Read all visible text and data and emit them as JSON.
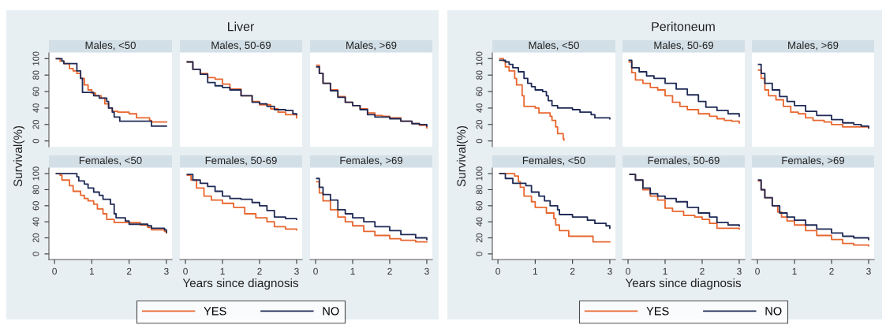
{
  "chart_data": [
    {
      "type": "step",
      "title": "Males, <50",
      "annotations": [
        "Liver"
      ],
      "ylabel": "Survival(%)",
      "xlim": [
        -0.15,
        3.15
      ],
      "ylim": [
        -7,
        107
      ],
      "xticks": [
        0,
        1,
        2,
        3
      ],
      "yticks": [
        0,
        20,
        40,
        60,
        80,
        100
      ],
      "tick_labels": "y",
      "grid": false,
      "series": [
        {
          "color": "#e8662e",
          "x": [
            0.05,
            0.15,
            0.25,
            0.4,
            0.5,
            0.6,
            0.7,
            0.8,
            0.9,
            1.0,
            1.1,
            1.25,
            1.35,
            1.45,
            1.55,
            1.7,
            2.0,
            2.2,
            2.55,
            2.6,
            3.0
          ],
          "values": [
            100,
            97,
            94,
            88,
            85,
            82,
            76,
            68,
            62,
            58,
            55,
            52,
            45,
            40,
            36,
            35,
            33,
            28,
            25,
            23,
            23
          ]
        },
        {
          "color": "#1f2a55",
          "x": [
            0.05,
            0.2,
            0.25,
            0.6,
            0.7,
            0.75,
            1.05,
            1.2,
            1.4,
            1.45,
            1.55,
            1.6,
            1.75,
            2.6,
            3.0
          ],
          "values": [
            100,
            97,
            94,
            85,
            76,
            59,
            55,
            52,
            48,
            40,
            35,
            29,
            24,
            18,
            18
          ]
        }
      ]
    },
    {
      "type": "step",
      "title": "Males, 50-69",
      "xlim": [
        -0.15,
        3.15
      ],
      "ylim": [
        -7,
        107
      ],
      "xticks": [
        0,
        1,
        2,
        3
      ],
      "yticks": [
        0,
        20,
        40,
        60,
        80,
        100
      ],
      "tick_labels": false,
      "grid": false,
      "series": [
        {
          "color": "#e8662e",
          "x": [
            0.05,
            0.2,
            0.4,
            0.6,
            0.8,
            1.0,
            1.2,
            1.5,
            1.8,
            2.0,
            2.3,
            2.5,
            2.7,
            3.0
          ],
          "values": [
            96,
            87,
            82,
            77,
            75,
            69,
            63,
            55,
            48,
            44,
            39,
            35,
            32,
            28
          ]
        },
        {
          "color": "#1f2a55",
          "x": [
            0.05,
            0.2,
            0.4,
            0.6,
            0.8,
            1.0,
            1.2,
            1.5,
            1.8,
            2.0,
            2.2,
            2.4,
            2.7,
            2.9,
            3.0
          ],
          "values": [
            96,
            87,
            81,
            71,
            67,
            65,
            62,
            55,
            47,
            45,
            42,
            38,
            37,
            33,
            32
          ]
        }
      ]
    },
    {
      "type": "step",
      "title": "Males, >69",
      "xlim": [
        -0.15,
        3.15
      ],
      "ylim": [
        -7,
        107
      ],
      "xticks": [
        0,
        1,
        2,
        3
      ],
      "yticks": [
        0,
        20,
        40,
        60,
        80,
        100
      ],
      "tick_labels": false,
      "grid": false,
      "series": [
        {
          "color": "#e8662e",
          "x": [
            0.03,
            0.1,
            0.2,
            0.4,
            0.6,
            0.8,
            1.0,
            1.2,
            1.4,
            1.6,
            1.8,
            2.0,
            2.3,
            2.6,
            2.8,
            3.0
          ],
          "values": [
            92,
            82,
            70,
            62,
            54,
            47,
            43,
            39,
            34,
            31,
            30,
            28,
            24,
            21,
            19,
            16
          ]
        },
        {
          "color": "#1f2a55",
          "x": [
            0.03,
            0.1,
            0.2,
            0.4,
            0.6,
            0.8,
            1.0,
            1.2,
            1.4,
            1.6,
            1.8,
            2.0,
            2.3,
            2.6,
            2.8,
            3.0
          ],
          "values": [
            90,
            82,
            70,
            61,
            53,
            47,
            43,
            38,
            32,
            29,
            29,
            27,
            24,
            21,
            20,
            18
          ]
        }
      ]
    },
    {
      "type": "step",
      "title": "Females, <50",
      "xlim": [
        -0.15,
        3.15
      ],
      "ylim": [
        -7,
        107
      ],
      "xticks": [
        0,
        1,
        2,
        3
      ],
      "yticks": [
        0,
        20,
        40,
        60,
        80,
        100
      ],
      "grid": false,
      "series": [
        {
          "color": "#e8662e",
          "x": [
            0.05,
            0.15,
            0.2,
            0.4,
            0.5,
            0.7,
            0.8,
            0.9,
            1.05,
            1.15,
            1.3,
            1.4,
            1.6,
            2.3,
            2.5,
            2.6,
            2.95,
            3.0
          ],
          "values": [
            100,
            98,
            92,
            85,
            78,
            73,
            69,
            66,
            62,
            56,
            50,
            43,
            39,
            36,
            33,
            30,
            28,
            26
          ]
        },
        {
          "color": "#1f2a55",
          "x": [
            0.05,
            0.6,
            0.65,
            0.8,
            0.9,
            1.05,
            1.2,
            1.3,
            1.5,
            1.6,
            1.65,
            1.9,
            2.0,
            2.5,
            2.6,
            2.95,
            3.0
          ],
          "values": [
            100,
            96,
            91,
            87,
            82,
            77,
            73,
            68,
            62,
            50,
            45,
            41,
            37,
            35,
            32,
            30,
            27
          ]
        }
      ]
    },
    {
      "type": "step",
      "title": "Females, 50-69",
      "xlabel": "Years since diagnosis",
      "legend": "bottom",
      "xlim": [
        -0.15,
        3.15
      ],
      "ylim": [
        -7,
        107
      ],
      "xticks": [
        0,
        1,
        2,
        3
      ],
      "yticks": [
        0,
        20,
        40,
        60,
        80,
        100
      ],
      "tick_labels": "x",
      "grid": false,
      "series": [
        {
          "name": "YES",
          "color": "#e8662e",
          "x": [
            0.05,
            0.15,
            0.3,
            0.5,
            0.7,
            1.0,
            1.3,
            1.6,
            1.9,
            2.2,
            2.4,
            2.7,
            3.0
          ],
          "values": [
            98,
            92,
            82,
            72,
            67,
            63,
            58,
            50,
            45,
            40,
            34,
            31,
            30
          ]
        },
        {
          "name": "NO",
          "color": "#1f2a55",
          "x": [
            0.05,
            0.2,
            0.4,
            0.6,
            0.8,
            1.0,
            1.2,
            1.5,
            1.8,
            2.0,
            2.2,
            2.4,
            2.7,
            3.0
          ],
          "values": [
            99,
            92,
            88,
            84,
            78,
            72,
            69,
            68,
            64,
            60,
            54,
            46,
            44,
            43
          ]
        }
      ]
    },
    {
      "type": "step",
      "title": "Females, >69",
      "xlim": [
        -0.15,
        3.15
      ],
      "ylim": [
        -7,
        107
      ],
      "xticks": [
        0,
        1,
        2,
        3
      ],
      "yticks": [
        0,
        20,
        40,
        60,
        80,
        100
      ],
      "tick_labels": "x",
      "grid": false,
      "series": [
        {
          "color": "#e8662e",
          "x": [
            0.03,
            0.1,
            0.2,
            0.4,
            0.6,
            0.8,
            1.0,
            1.3,
            1.6,
            2.0,
            2.3,
            2.7,
            3.0
          ],
          "values": [
            90,
            76,
            66,
            55,
            46,
            40,
            35,
            28,
            23,
            19,
            17,
            15,
            15
          ]
        },
        {
          "color": "#1f2a55",
          "x": [
            0.03,
            0.1,
            0.2,
            0.4,
            0.6,
            0.8,
            1.0,
            1.3,
            1.6,
            2.0,
            2.3,
            2.7,
            3.0
          ],
          "values": [
            94,
            83,
            74,
            67,
            55,
            50,
            45,
            40,
            34,
            29,
            24,
            20,
            18
          ]
        }
      ]
    },
    {
      "type": "step",
      "title": "Males, <50",
      "annotations": [
        "Peritoneum"
      ],
      "ylabel": "Survival(%)",
      "xlim": [
        -0.15,
        3.15
      ],
      "ylim": [
        -7,
        107
      ],
      "xticks": [
        0,
        1,
        2,
        3
      ],
      "yticks": [
        0,
        20,
        40,
        60,
        80,
        100
      ],
      "tick_labels": "y",
      "grid": false,
      "series": [
        {
          "color": "#e8662e",
          "x": [
            0.05,
            0.15,
            0.2,
            0.3,
            0.45,
            0.5,
            0.65,
            0.7,
            1.0,
            1.1,
            1.4,
            1.45,
            1.55,
            1.6,
            1.75,
            1.77
          ],
          "values": [
            100,
            97,
            90,
            85,
            76,
            68,
            55,
            42,
            40,
            34,
            30,
            25,
            17,
            9,
            3,
            1
          ]
        },
        {
          "color": "#1f2a55",
          "x": [
            0.05,
            0.2,
            0.3,
            0.4,
            0.55,
            0.7,
            0.8,
            0.9,
            1.0,
            1.2,
            1.3,
            1.35,
            1.45,
            1.6,
            2.0,
            2.2,
            2.5,
            2.6,
            3.0
          ],
          "values": [
            98,
            96,
            93,
            89,
            84,
            76,
            70,
            66,
            62,
            60,
            55,
            49,
            43,
            40,
            38,
            35,
            32,
            28,
            27
          ]
        }
      ]
    },
    {
      "type": "step",
      "title": "Males, 50-69",
      "xlim": [
        -0.15,
        3.15
      ],
      "ylim": [
        -7,
        107
      ],
      "xticks": [
        0,
        1,
        2,
        3
      ],
      "yticks": [
        0,
        20,
        40,
        60,
        80,
        100
      ],
      "tick_labels": false,
      "grid": false,
      "series": [
        {
          "color": "#e8662e",
          "x": [
            0.03,
            0.1,
            0.2,
            0.4,
            0.6,
            0.8,
            1.0,
            1.2,
            1.4,
            1.6,
            1.9,
            2.2,
            2.4,
            2.6,
            2.8,
            3.0
          ],
          "values": [
            96,
            83,
            74,
            70,
            65,
            62,
            55,
            47,
            42,
            38,
            33,
            30,
            27,
            25,
            24,
            22
          ]
        },
        {
          "color": "#1f2a55",
          "x": [
            0.03,
            0.1,
            0.3,
            0.5,
            0.7,
            1.0,
            1.3,
            1.6,
            1.9,
            2.1,
            2.4,
            2.7,
            3.0
          ],
          "values": [
            98,
            89,
            84,
            79,
            76,
            70,
            63,
            56,
            48,
            41,
            37,
            33,
            30
          ]
        }
      ]
    },
    {
      "type": "step",
      "title": "Males, >69",
      "xlim": [
        -0.15,
        3.15
      ],
      "ylim": [
        -7,
        107
      ],
      "xticks": [
        0,
        1,
        2,
        3
      ],
      "yticks": [
        0,
        20,
        40,
        60,
        80,
        100
      ],
      "tick_labels": false,
      "grid": false,
      "series": [
        {
          "color": "#e8662e",
          "x": [
            0.03,
            0.1,
            0.2,
            0.3,
            0.5,
            0.7,
            0.9,
            1.1,
            1.3,
            1.5,
            1.8,
            2.0,
            2.3,
            2.7,
            3.0
          ],
          "values": [
            86,
            76,
            62,
            55,
            50,
            42,
            35,
            33,
            28,
            25,
            23,
            20,
            17,
            17,
            16
          ]
        },
        {
          "color": "#1f2a55",
          "x": [
            0.03,
            0.1,
            0.2,
            0.4,
            0.6,
            0.8,
            1.0,
            1.3,
            1.6,
            2.0,
            2.3,
            2.6,
            2.8,
            3.0
          ],
          "values": [
            93,
            82,
            70,
            62,
            54,
            48,
            43,
            36,
            31,
            26,
            22,
            20,
            18,
            16
          ]
        }
      ]
    },
    {
      "type": "step",
      "title": "Females, <50",
      "xlim": [
        -0.15,
        3.15
      ],
      "ylim": [
        -7,
        107
      ],
      "xticks": [
        0,
        1,
        2,
        3
      ],
      "yticks": [
        0,
        20,
        40,
        60,
        80,
        100
      ],
      "grid": false,
      "series": [
        {
          "color": "#e8662e",
          "x": [
            0.05,
            0.45,
            0.55,
            0.6,
            0.7,
            0.9,
            1.0,
            1.3,
            1.5,
            1.55,
            1.65,
            1.9,
            2.55,
            3.0
          ],
          "values": [
            100,
            97,
            90,
            83,
            72,
            65,
            58,
            51,
            44,
            36,
            29,
            22,
            15,
            15
          ]
        },
        {
          "color": "#1f2a55",
          "x": [
            0.05,
            0.2,
            0.4,
            0.75,
            0.9,
            1.1,
            1.25,
            1.4,
            1.6,
            1.65,
            2.0,
            2.4,
            2.6,
            2.9,
            3.0
          ],
          "values": [
            100,
            94,
            88,
            85,
            77,
            72,
            66,
            60,
            55,
            49,
            46,
            42,
            38,
            35,
            32
          ]
        }
      ]
    },
    {
      "type": "step",
      "title": "Females, 50-69",
      "xlabel": "Years since diagnosis",
      "legend": "bottom",
      "xlim": [
        -0.15,
        3.15
      ],
      "ylim": [
        -7,
        107
      ],
      "xticks": [
        0,
        1,
        2,
        3
      ],
      "yticks": [
        0,
        20,
        40,
        60,
        80,
        100
      ],
      "tick_labels": "x",
      "grid": false,
      "series": [
        {
          "name": "YES",
          "color": "#e8662e",
          "x": [
            0.05,
            0.2,
            0.4,
            0.6,
            0.8,
            1.0,
            1.2,
            1.5,
            1.8,
            2.0,
            2.2,
            2.4,
            3.0
          ],
          "values": [
            99,
            92,
            80,
            72,
            67,
            57,
            53,
            48,
            46,
            43,
            38,
            32,
            31
          ]
        },
        {
          "name": "NO",
          "color": "#1f2a55",
          "x": [
            0.05,
            0.2,
            0.4,
            0.6,
            0.8,
            1.0,
            1.3,
            1.6,
            1.9,
            2.2,
            2.4,
            2.7,
            3.0
          ],
          "values": [
            99,
            92,
            82,
            75,
            72,
            69,
            65,
            58,
            51,
            46,
            39,
            36,
            35
          ]
        }
      ]
    },
    {
      "type": "step",
      "title": "Females, >69",
      "xlim": [
        -0.15,
        3.15
      ],
      "ylim": [
        -7,
        107
      ],
      "xticks": [
        0,
        1,
        2,
        3
      ],
      "yticks": [
        0,
        20,
        40,
        60,
        80,
        100
      ],
      "tick_labels": "x",
      "grid": false,
      "series": [
        {
          "color": "#e8662e",
          "x": [
            0.03,
            0.1,
            0.2,
            0.4,
            0.55,
            0.65,
            0.8,
            1.0,
            1.3,
            1.6,
            2.0,
            2.3,
            2.6,
            3.0
          ],
          "values": [
            91,
            80,
            70,
            60,
            52,
            46,
            41,
            36,
            29,
            23,
            18,
            13,
            11,
            10
          ]
        },
        {
          "color": "#1f2a55",
          "x": [
            0.03,
            0.1,
            0.2,
            0.4,
            0.6,
            0.8,
            1.0,
            1.3,
            1.6,
            2.0,
            2.3,
            2.6,
            3.0
          ],
          "values": [
            92,
            80,
            70,
            60,
            51,
            46,
            42,
            36,
            31,
            26,
            22,
            20,
            18
          ]
        }
      ]
    }
  ]
}
